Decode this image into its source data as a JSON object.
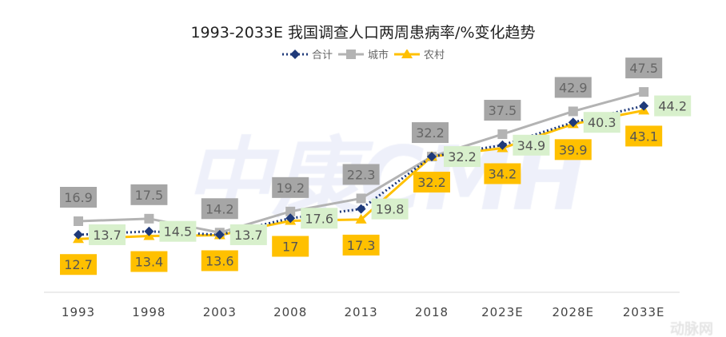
{
  "watermark": {
    "main": "中康CMH",
    "corner": "动脉网"
  },
  "chart_data": {
    "type": "line",
    "title": "1993-2033E 我国调查人口两周患病率/%变化趋势",
    "categories": [
      "1993",
      "1998",
      "2003",
      "2008",
      "2013",
      "2018",
      "2023E",
      "2028E",
      "2033E"
    ],
    "legend_position": "top",
    "grid": false,
    "ylim": [
      10,
      50
    ],
    "series": [
      {
        "name": "合计",
        "color": "#1f3a7a",
        "style": "dotted",
        "marker": "diamond",
        "label_bg": "#d8f0cc",
        "values": [
          13.7,
          14.5,
          13.7,
          17.6,
          19.8,
          32.2,
          34.9,
          40.3,
          44.2
        ]
      },
      {
        "name": "城市",
        "color": "#b3b3b3",
        "style": "solid",
        "marker": "square",
        "label_bg": "#a6a6a6",
        "values": [
          16.9,
          17.5,
          14.2,
          19.2,
          22.3,
          32.2,
          37.5,
          42.9,
          47.5
        ]
      },
      {
        "name": "农村",
        "color": "#ffc000",
        "style": "solid",
        "marker": "triangle",
        "label_bg": "#ffc000",
        "values": [
          12.7,
          13.4,
          13.6,
          17,
          17.3,
          32.2,
          34.2,
          39.9,
          43.1
        ]
      }
    ]
  }
}
